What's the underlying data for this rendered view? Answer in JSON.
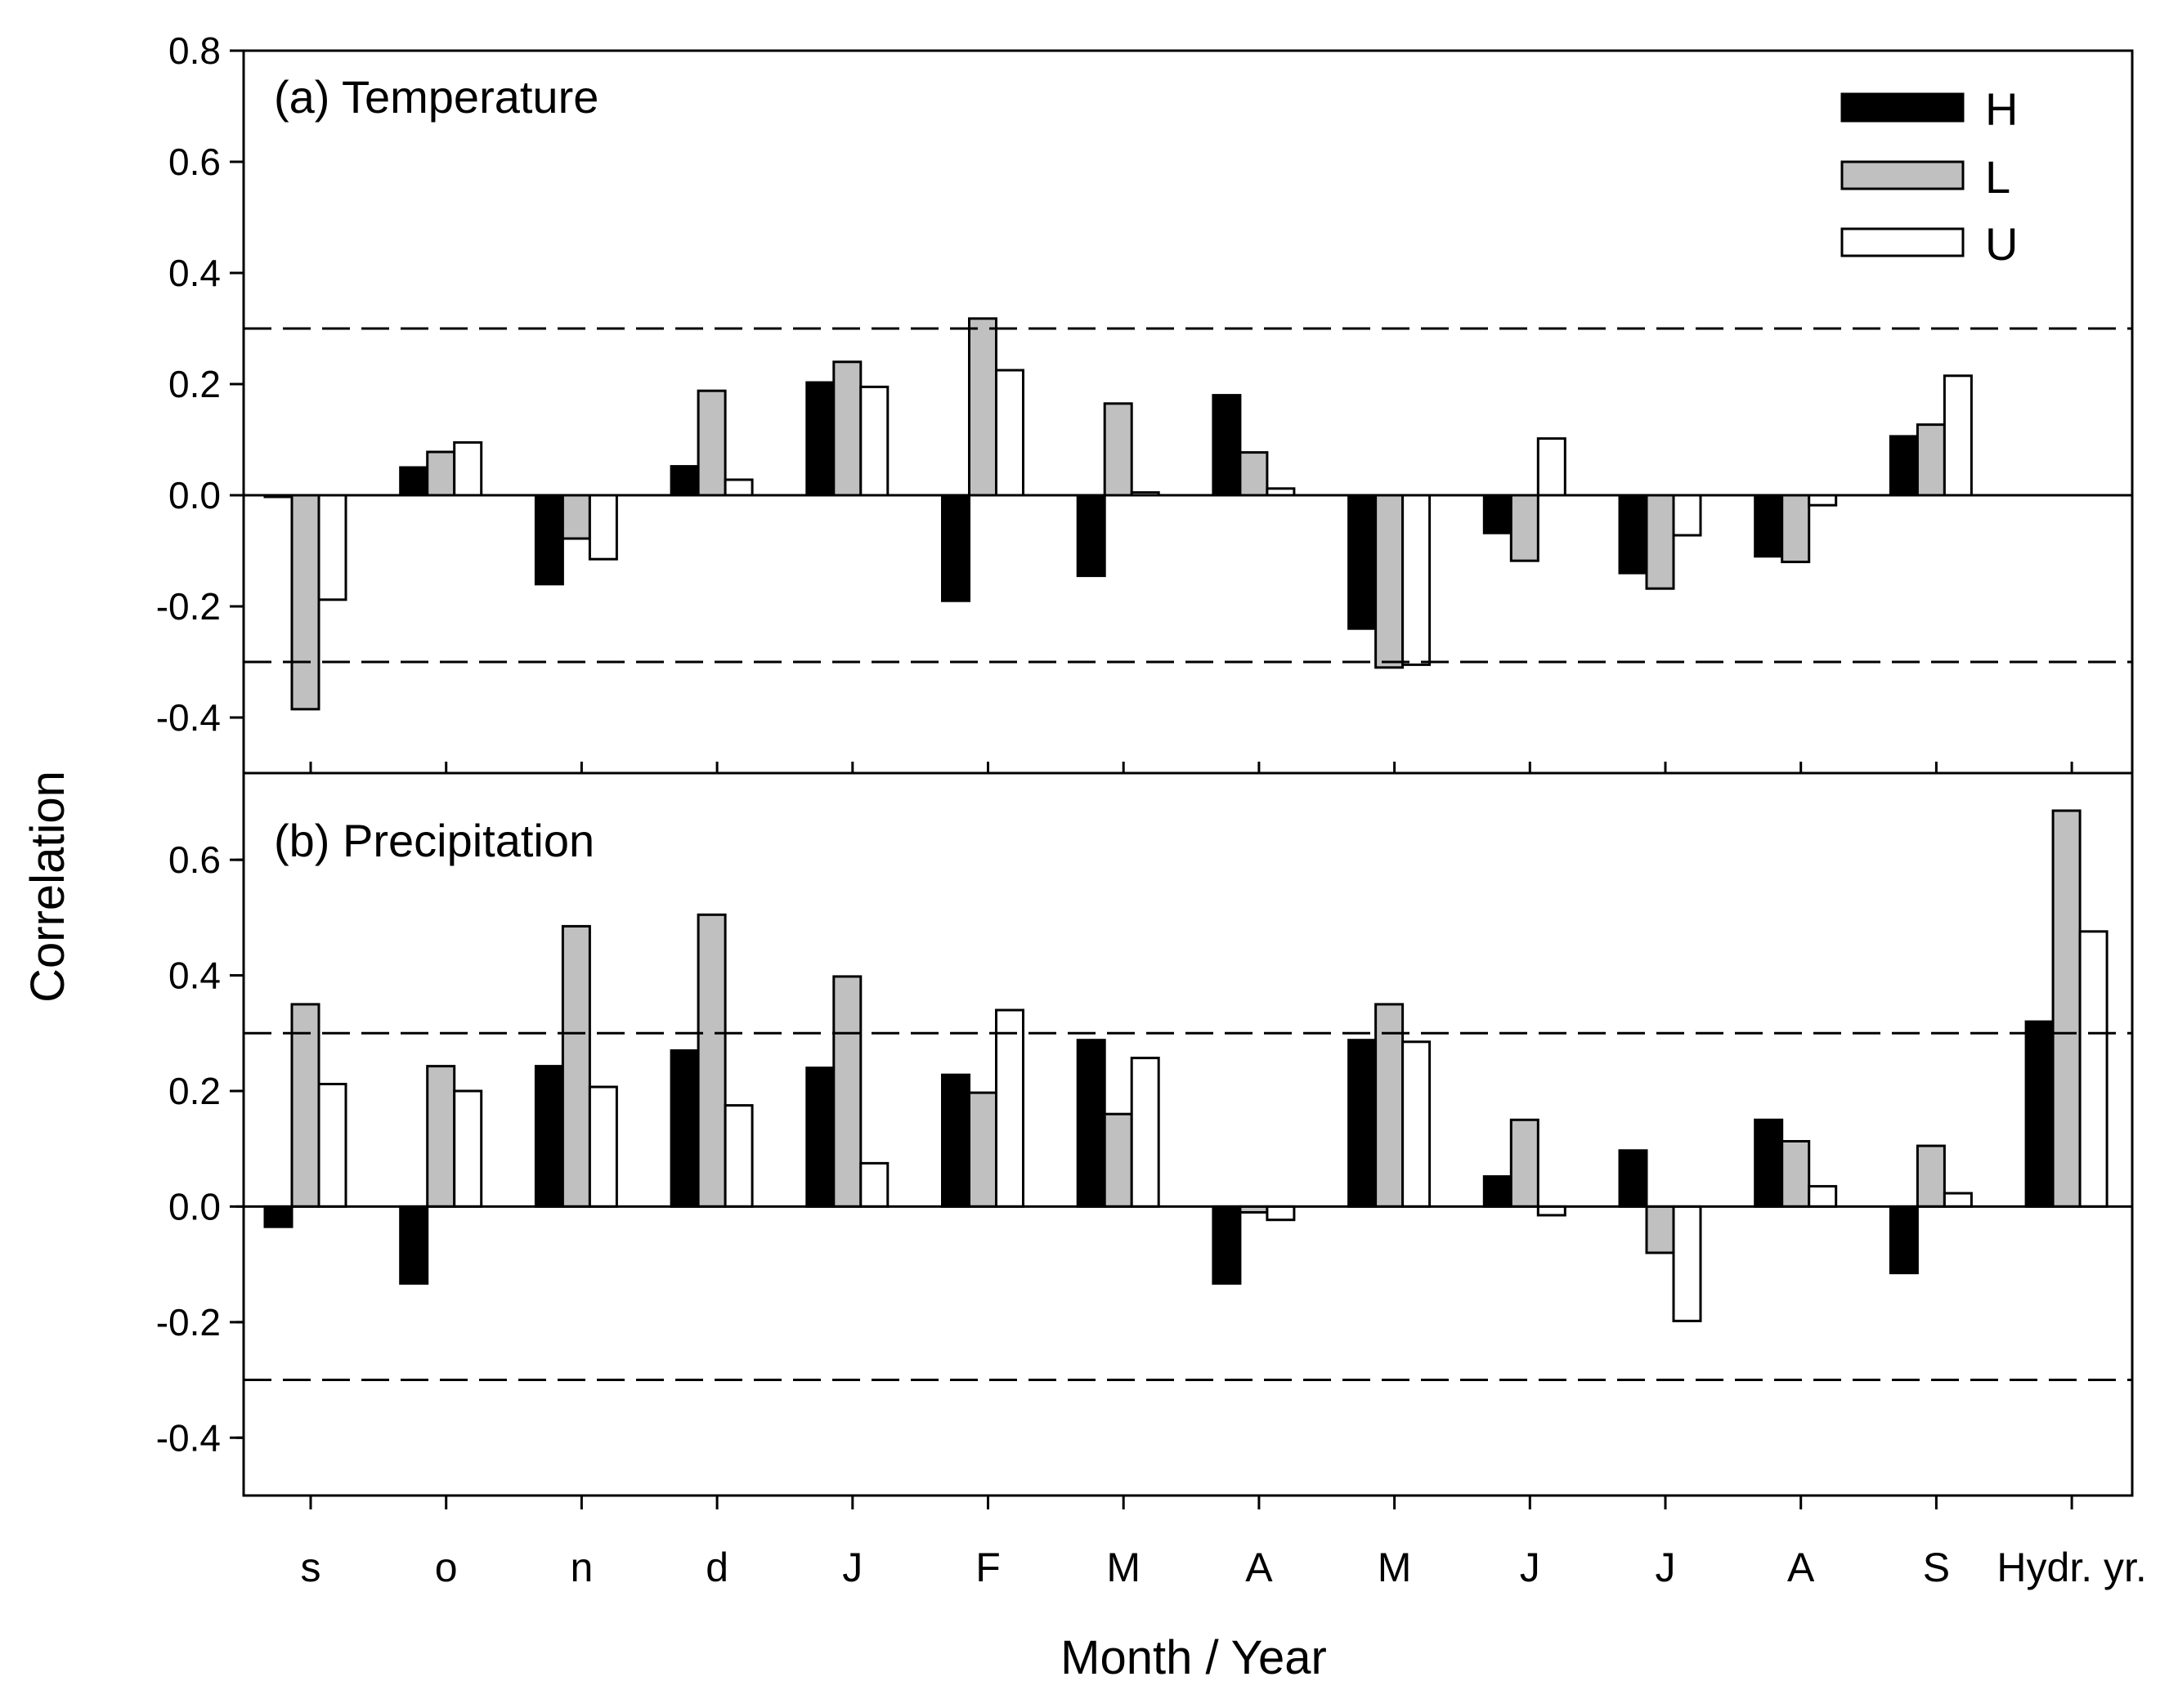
{
  "colors": {
    "H": "#000000",
    "L": "#c0c0c0",
    "U": "#ffffff",
    "stroke": "#000000"
  },
  "chart_data": {
    "type": "bar",
    "xlabel": "Month / Year",
    "ylabel": "Correlation",
    "categories": [
      "s",
      "o",
      "n",
      "d",
      "J",
      "F",
      "M",
      "A",
      "M",
      "J",
      "J",
      "A",
      "S",
      "Hydr. yr."
    ],
    "legend": {
      "position": "top-right",
      "entries": [
        "H",
        "L",
        "U"
      ]
    },
    "panels": [
      {
        "id": "temperature",
        "title": "(a) Temperature",
        "ylim": [
          -0.5,
          0.8
        ],
        "yticks": [
          -0.4,
          -0.2,
          0.0,
          0.2,
          0.4,
          0.6,
          0.8
        ],
        "ytick_labels": [
          "-0.4",
          "-0.2",
          "0.0",
          "0.2",
          "0.4",
          "0.6",
          "0.8"
        ],
        "significance_lines": [
          0.3,
          -0.3
        ],
        "series": [
          {
            "name": "H",
            "values": [
              -0.003,
              0.05,
              -0.16,
              0.052,
              0.203,
              -0.19,
              -0.145,
              0.18,
              -0.24,
              -0.068,
              -0.14,
              -0.11,
              0.106,
              null
            ]
          },
          {
            "name": "L",
            "values": [
              -0.385,
              0.078,
              -0.078,
              0.188,
              0.24,
              0.318,
              0.165,
              0.077,
              -0.31,
              -0.118,
              -0.168,
              -0.12,
              0.127,
              null
            ]
          },
          {
            "name": "U",
            "values": [
              -0.188,
              0.095,
              -0.115,
              0.028,
              0.195,
              0.225,
              0.005,
              0.012,
              -0.305,
              0.102,
              -0.072,
              -0.018,
              0.215,
              null
            ]
          }
        ]
      },
      {
        "id": "precipitation",
        "title": "(b) Precipitation",
        "ylim": [
          -0.5,
          0.75
        ],
        "yticks": [
          -0.4,
          -0.2,
          0.0,
          0.2,
          0.4,
          0.6
        ],
        "ytick_labels": [
          "-0.4",
          "-0.2",
          "0.0",
          "0.2",
          "0.4",
          "0.6"
        ],
        "significance_lines": [
          0.3,
          -0.3
        ],
        "series": [
          {
            "name": "H",
            "values": [
              -0.035,
              -0.133,
              0.243,
              0.27,
              0.24,
              0.228,
              0.288,
              -0.133,
              0.288,
              0.052,
              0.097,
              0.15,
              -0.115,
              0.32
            ]
          },
          {
            "name": "L",
            "values": [
              0.35,
              0.243,
              0.485,
              0.505,
              0.398,
              0.197,
              0.16,
              -0.01,
              0.35,
              0.15,
              -0.08,
              0.113,
              0.105,
              0.685
            ]
          },
          {
            "name": "U",
            "values": [
              0.212,
              0.2,
              0.207,
              0.175,
              0.075,
              0.34,
              0.257,
              -0.023,
              0.285,
              -0.015,
              -0.198,
              0.035,
              0.023,
              0.476
            ]
          }
        ]
      }
    ]
  }
}
